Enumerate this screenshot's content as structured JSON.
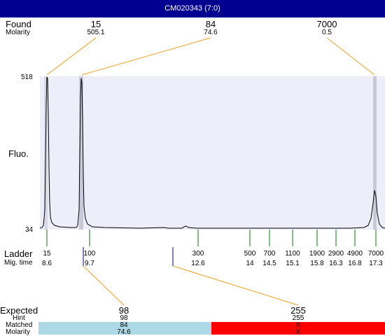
{
  "window": {
    "title": "CM020343 (7:0)"
  },
  "found": {
    "label": "Found",
    "molarity_label": "Molarity",
    "peaks": [
      {
        "size": "15",
        "molarity": "505.1"
      },
      {
        "size": "84",
        "molarity": "74.6"
      },
      {
        "size": "7000",
        "molarity": "0.5"
      }
    ]
  },
  "axis": {
    "y_top": "518",
    "y_bottom": "34",
    "y_label": "Fluo."
  },
  "ladder": {
    "label": "Ladder",
    "mig_label": "Mig. time",
    "entries": [
      {
        "size": "15",
        "time": "8.6"
      },
      {
        "size": "100",
        "time": "9.7"
      },
      {
        "size": "300",
        "time": "12.6"
      },
      {
        "size": "500",
        "time": "14"
      },
      {
        "size": "700",
        "time": "14.5"
      },
      {
        "size": "1100",
        "time": "15.1"
      },
      {
        "size": "1900",
        "time": "15.8"
      },
      {
        "size": "2900",
        "time": "16.3"
      },
      {
        "size": "4900",
        "time": "16.8"
      },
      {
        "size": "7000",
        "time": "17.3"
      }
    ]
  },
  "expected": {
    "label": "Expected",
    "hint_label": "Hint",
    "matched_label": "Matched",
    "molarity_label": "Molarity",
    "columns": [
      {
        "expected": "98",
        "hint": "98",
        "matched": "84",
        "molarity": "74.6",
        "color": "#add8e6"
      },
      {
        "expected": "255",
        "hint": "255",
        "matched": "X",
        "molarity": "X",
        "color": "#ff0000"
      }
    ]
  },
  "colors": {
    "title_bar": "#000090",
    "plot_bg": "#eeeefa",
    "peak_band": "#c8c8d8",
    "connector": "#f0a020",
    "tick": "#008000"
  }
}
